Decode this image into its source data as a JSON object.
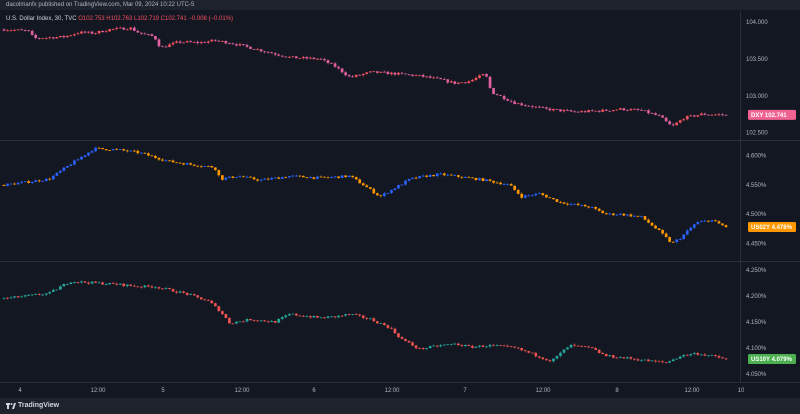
{
  "header": {
    "published": "dacolmanfx published on TradingView.com, Mar 09, 2024 10:22 UTC-5"
  },
  "legend": {
    "symbol": "U.S. Dollar Index, 30, TVC",
    "ohlc": "O102.753 H102.763 L102.719 C102.741 −0.008 (−0.01%)"
  },
  "footer": {
    "brand": "TradingView"
  },
  "colors": {
    "background": "#131722",
    "grid": "#2a2e39",
    "axis_text": "#b2b5be",
    "dxy_up": "#f7525f",
    "dxy_down": "#e0609f",
    "us02y_up": "#2962ff",
    "us02y_down": "#ff9800",
    "us10y_up": "#26a69a",
    "us10y_down": "#ef5350",
    "dxy_badge": "#f06292",
    "us02y_badge": "#ff9800",
    "us10y_badge": "#4caf50"
  },
  "chart_data": [
    {
      "type": "candlestick",
      "symbol": "DXY",
      "last_label": "DXY",
      "last_value": "102.741",
      "last": 102.741,
      "y_ticks": [
        "104.000",
        "103.500",
        "103.000",
        "102.500"
      ],
      "ylim": [
        102.4,
        104.15
      ],
      "x_ticks": [
        "4",
        "12:00",
        "5",
        "12:00",
        "6",
        "12:00",
        "7",
        "12:00",
        "8",
        "12:00",
        "10"
      ],
      "path": [
        [
          0,
          103.9
        ],
        [
          0.08,
          103.88
        ],
        [
          0.1,
          103.78
        ],
        [
          0.2,
          103.8
        ],
        [
          0.25,
          103.86
        ],
        [
          0.3,
          103.85
        ],
        [
          0.35,
          103.9
        ],
        [
          0.42,
          103.92
        ],
        [
          0.45,
          103.85
        ],
        [
          0.5,
          103.8
        ],
        [
          0.52,
          103.65
        ],
        [
          0.58,
          103.73
        ],
        [
          0.65,
          103.72
        ],
        [
          0.7,
          103.75
        ],
        [
          0.75,
          103.72
        ],
        [
          0.85,
          103.62
        ],
        [
          0.95,
          103.52
        ],
        [
          1.05,
          103.5
        ],
        [
          1.1,
          103.4
        ],
        [
          1.15,
          103.25
        ],
        [
          1.22,
          103.32
        ],
        [
          1.3,
          103.3
        ],
        [
          1.38,
          103.27
        ],
        [
          1.45,
          103.22
        ],
        [
          1.5,
          103.17
        ],
        [
          1.55,
          103.2
        ],
        [
          1.6,
          103.3
        ],
        [
          1.62,
          103.05
        ],
        [
          1.7,
          102.9
        ],
        [
          1.8,
          102.82
        ],
        [
          1.9,
          102.78
        ],
        [
          2.0,
          102.8
        ],
        [
          2.05,
          102.82
        ],
        [
          2.12,
          102.8
        ],
        [
          2.18,
          102.72
        ],
        [
          2.22,
          102.58
        ],
        [
          2.26,
          102.7
        ],
        [
          2.32,
          102.75
        ],
        [
          2.4,
          102.741
        ]
      ]
    },
    {
      "type": "candlestick",
      "symbol": "US02Y",
      "last_label": "US02Y",
      "last_value": "4.478%",
      "last": 4.478,
      "y_ticks": [
        "4.600%",
        "4.550%",
        "4.500%",
        "4.450%"
      ],
      "ylim": [
        4.42,
        4.625
      ],
      "x_ticks": [
        "4",
        "12:00",
        "5",
        "12:00",
        "6",
        "12:00",
        "7",
        "12:00",
        "8",
        "12:00",
        "10"
      ],
      "path": [
        [
          0,
          4.55
        ],
        [
          0.08,
          4.555
        ],
        [
          0.15,
          4.56
        ],
        [
          0.22,
          4.585
        ],
        [
          0.3,
          4.612
        ],
        [
          0.38,
          4.61
        ],
        [
          0.45,
          4.605
        ],
        [
          0.55,
          4.59
        ],
        [
          0.62,
          4.585
        ],
        [
          0.7,
          4.58
        ],
        [
          0.72,
          4.56
        ],
        [
          0.78,
          4.565
        ],
        [
          0.85,
          4.558
        ],
        [
          0.95,
          4.565
        ],
        [
          1.05,
          4.562
        ],
        [
          1.15,
          4.565
        ],
        [
          1.2,
          4.548
        ],
        [
          1.25,
          4.53
        ],
        [
          1.3,
          4.545
        ],
        [
          1.35,
          4.56
        ],
        [
          1.4,
          4.565
        ],
        [
          1.45,
          4.568
        ],
        [
          1.5,
          4.565
        ],
        [
          1.6,
          4.558
        ],
        [
          1.68,
          4.55
        ],
        [
          1.72,
          4.53
        ],
        [
          1.78,
          4.535
        ],
        [
          1.85,
          4.52
        ],
        [
          1.95,
          4.512
        ],
        [
          2.0,
          4.5
        ],
        [
          2.05,
          4.5
        ],
        [
          2.12,
          4.495
        ],
        [
          2.18,
          4.47
        ],
        [
          2.22,
          4.45
        ],
        [
          2.25,
          4.46
        ],
        [
          2.3,
          4.485
        ],
        [
          2.35,
          4.49
        ],
        [
          2.4,
          4.478
        ]
      ]
    },
    {
      "type": "candlestick",
      "symbol": "US10Y",
      "last_label": "US10Y",
      "last_value": "4.079%",
      "last": 4.079,
      "y_ticks": [
        "4.250%",
        "4.200%",
        "4.150%",
        "4.100%",
        "4.050%"
      ],
      "ylim": [
        4.035,
        4.265
      ],
      "x_ticks": [
        "4",
        "12:00",
        "5",
        "12:00",
        "6",
        "12:00",
        "7",
        "12:00",
        "8",
        "12:00",
        "10"
      ],
      "path": [
        [
          0,
          4.195
        ],
        [
          0.08,
          4.2
        ],
        [
          0.15,
          4.205
        ],
        [
          0.22,
          4.228
        ],
        [
          0.3,
          4.225
        ],
        [
          0.38,
          4.222
        ],
        [
          0.45,
          4.218
        ],
        [
          0.5,
          4.218
        ],
        [
          0.6,
          4.205
        ],
        [
          0.68,
          4.19
        ],
        [
          0.72,
          4.17
        ],
        [
          0.75,
          4.148
        ],
        [
          0.82,
          4.155
        ],
        [
          0.9,
          4.15
        ],
        [
          0.95,
          4.165
        ],
        [
          1.05,
          4.158
        ],
        [
          1.1,
          4.16
        ],
        [
          1.15,
          4.165
        ],
        [
          1.22,
          4.155
        ],
        [
          1.28,
          4.14
        ],
        [
          1.32,
          4.118
        ],
        [
          1.38,
          4.098
        ],
        [
          1.45,
          4.105
        ],
        [
          1.5,
          4.108
        ],
        [
          1.55,
          4.102
        ],
        [
          1.62,
          4.105
        ],
        [
          1.7,
          4.1
        ],
        [
          1.75,
          4.09
        ],
        [
          1.82,
          4.075
        ],
        [
          1.88,
          4.105
        ],
        [
          1.95,
          4.1
        ],
        [
          2.0,
          4.085
        ],
        [
          2.08,
          4.08
        ],
        [
          2.15,
          4.075
        ],
        [
          2.2,
          4.072
        ],
        [
          2.25,
          4.085
        ],
        [
          2.3,
          4.09
        ],
        [
          2.35,
          4.085
        ],
        [
          2.4,
          4.079
        ]
      ]
    }
  ]
}
